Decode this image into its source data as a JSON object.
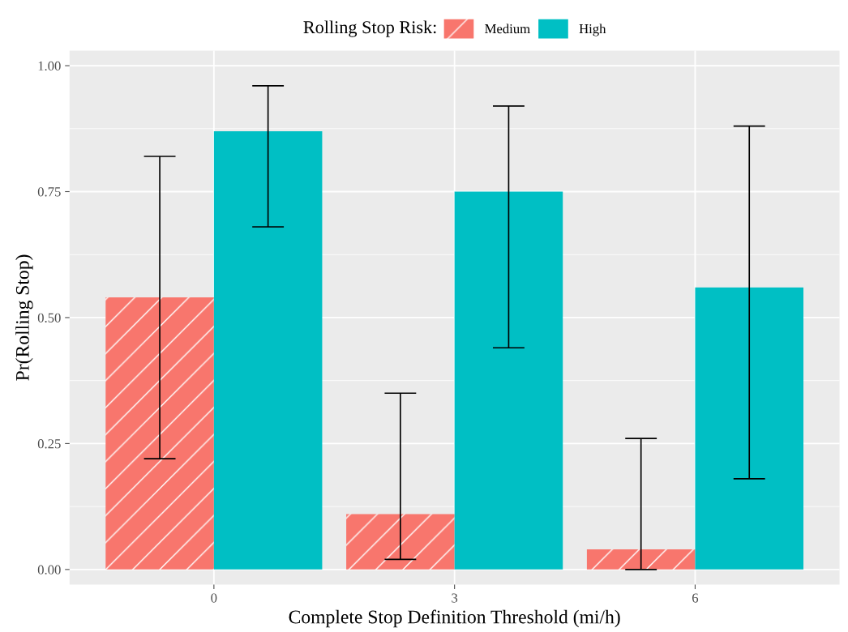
{
  "chart_data": {
    "type": "bar",
    "xlabel": "Complete Stop Definition Threshold (mi/h)",
    "ylabel": "Pr(Rolling Stop)",
    "legend_title": "Rolling Stop Risk:",
    "legend": "top",
    "grid": true,
    "categories": [
      "0",
      "3",
      "6"
    ],
    "ylim": [
      -0.03,
      1.03
    ],
    "yticks": [
      {
        "value": 0,
        "label": "0.00"
      },
      {
        "value": 0.25,
        "label": "0.25"
      },
      {
        "value": 0.5,
        "label": "0.50"
      },
      {
        "value": 0.75,
        "label": "0.75"
      },
      {
        "value": 1,
        "label": "1.00"
      }
    ],
    "series": [
      {
        "name": "Medium",
        "color": "#f8766d",
        "values": [
          0.54,
          0.11,
          0.04
        ],
        "errors": [
          [
            0.22,
            0.82
          ],
          [
            0.02,
            0.35
          ],
          [
            0.0,
            0.26
          ]
        ]
      },
      {
        "name": "High",
        "color": "#00bfc4",
        "values": [
          0.87,
          0.75,
          0.56
        ],
        "errors": [
          [
            0.68,
            0.96
          ],
          [
            0.44,
            0.92
          ],
          [
            0.18,
            0.88
          ]
        ]
      }
    ]
  }
}
